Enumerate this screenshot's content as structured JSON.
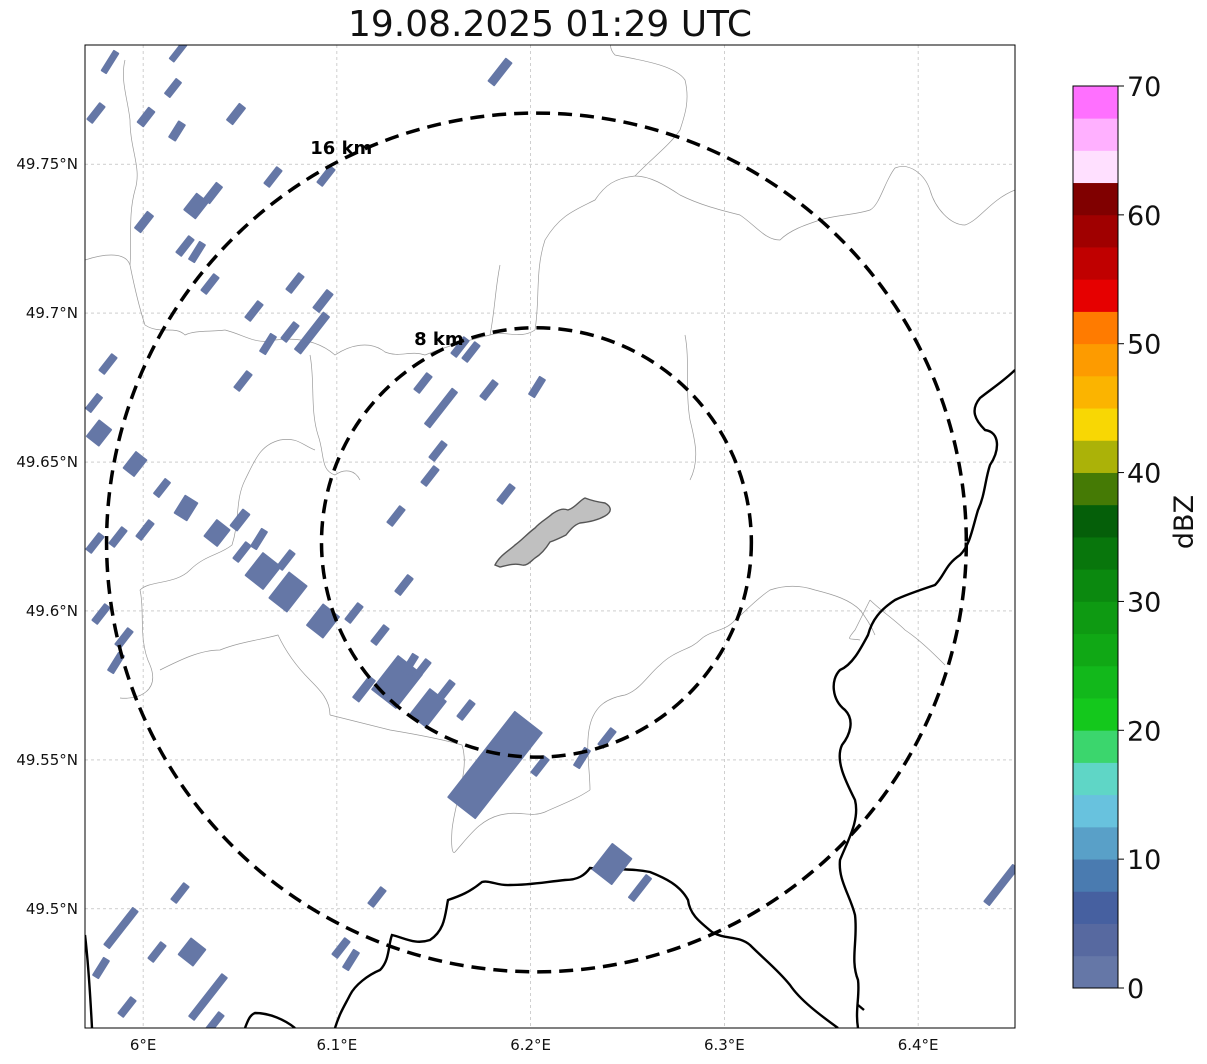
{
  "title": "19.08.2025 01:29 UTC",
  "map": {
    "lon_range": [
      5.97,
      6.45
    ],
    "lat_range": [
      49.46,
      49.79
    ],
    "center": {
      "lon": 6.203,
      "lat": 49.623
    },
    "gridlines": true,
    "x_ticks": [
      {
        "value": 6.0,
        "label": "6°E"
      },
      {
        "value": 6.1,
        "label": "6.1°E"
      },
      {
        "value": 6.2,
        "label": "6.2°E"
      },
      {
        "value": 6.3,
        "label": "6.3°E"
      },
      {
        "value": 6.4,
        "label": "6.4°E"
      }
    ],
    "y_ticks": [
      {
        "value": 49.5,
        "label": "49.5°N"
      },
      {
        "value": 49.55,
        "label": "49.55°N"
      },
      {
        "value": 49.6,
        "label": "49.6°N"
      },
      {
        "value": 49.65,
        "label": "49.65°N"
      },
      {
        "value": 49.7,
        "label": "49.7°N"
      },
      {
        "value": 49.75,
        "label": "49.75°N"
      }
    ],
    "range_rings": [
      {
        "radius_km": 8,
        "label": "8 km"
      },
      {
        "radius_km": 16,
        "label": "16 km"
      }
    ],
    "echo_color": "#6577a6",
    "city_fill": "#c0c0c0"
  },
  "colorbar": {
    "label": "dBZ",
    "min": 0,
    "max": 70,
    "step": 2.5,
    "ticks": [
      {
        "value": 0,
        "label": "0"
      },
      {
        "value": 10,
        "label": "10"
      },
      {
        "value": 20,
        "label": "20"
      },
      {
        "value": 30,
        "label": "30"
      },
      {
        "value": 40,
        "label": "40"
      },
      {
        "value": 50,
        "label": "50"
      },
      {
        "value": 60,
        "label": "60"
      },
      {
        "value": 70,
        "label": "70"
      }
    ],
    "colors": [
      "#6577a7",
      "#5769a0",
      "#4660a0",
      "#4a7bb0",
      "#59a0c8",
      "#68c2de",
      "#5fd6c6",
      "#3bd66d",
      "#14c81c",
      "#12b81b",
      "#10a815",
      "#0e9a12",
      "#0b890f",
      "#08760c",
      "#055f09",
      "#457a05",
      "#abb208",
      "#f8d704",
      "#fbb400",
      "#fd9b00",
      "#ff7b00",
      "#e60000",
      "#c00000",
      "#a00000",
      "#800000",
      "#ffe0ff",
      "#ffb0ff",
      "#ff70ff",
      "#f030f0"
    ]
  }
}
